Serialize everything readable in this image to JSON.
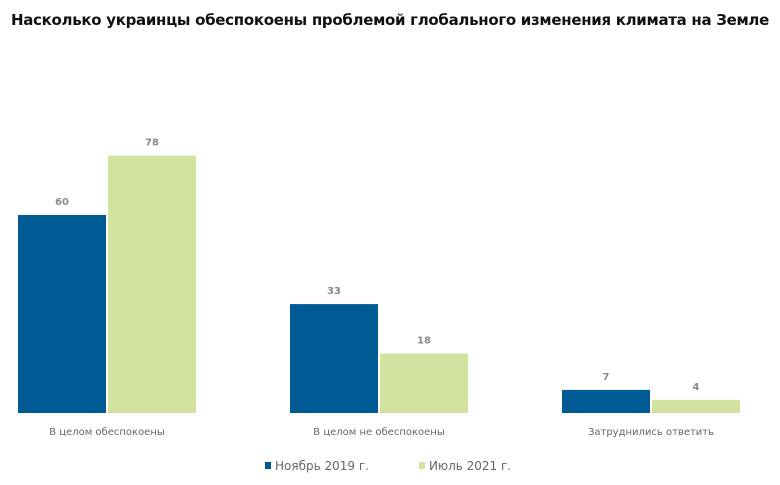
{
  "chart_data": {
    "type": "bar",
    "title": "Насколько украинцы обеспокоены проблемой глобального изменения климата на Земле",
    "categories": [
      "В целом обеспокоены",
      "В целом не обеспокоены",
      "Затруднились ответить"
    ],
    "series": [
      {
        "name": "Ноябрь 2019 г.",
        "values": [
          60,
          33,
          7
        ],
        "color": "#005b94"
      },
      {
        "name": "Июль 2021 г.",
        "values": [
          78,
          18,
          4
        ],
        "color": "#d2e39f"
      }
    ],
    "xlabel": "",
    "ylabel": "",
    "ylim": [
      0,
      80
    ],
    "grid": false,
    "legend": "bottom"
  }
}
